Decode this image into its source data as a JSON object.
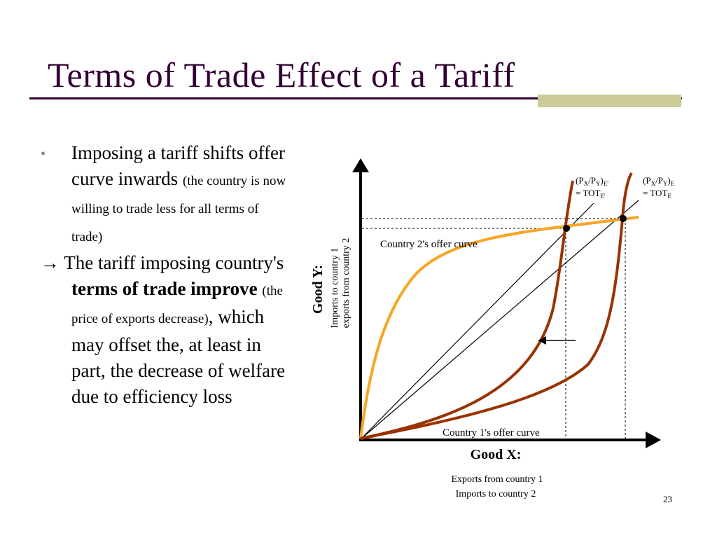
{
  "slide": {
    "title": "Terms of Trade Effect of a Tariff",
    "page_number": "23"
  },
  "bullets": {
    "item1_main": "Imposing a tariff shifts offer curve inwards",
    "item1_note": "(the country is now willing to trade less for all terms of trade)",
    "item2_marker": "→",
    "item2_text_a": "The tariff imposing country's",
    "item2_bold": "terms of trade improve",
    "item2_note": "(the price of exports decrease)",
    "item2_text_b": ", which may offset the, at least in part, the decrease of welfare due to efficiency loss"
  },
  "diagram": {
    "y_axis_title": "Good Y:",
    "y_axis_sub1": "Imports to country 1",
    "y_axis_sub2": "exports from country 2",
    "x_axis_title": "Good X:",
    "x_axis_sub1": "Exports from country 1",
    "x_axis_sub2": "Imports to country 2",
    "curve_country2_label": "Country 2's offer curve",
    "curve_country1_label": "Country 1's offer curve",
    "tot_new": {
      "ratio": "P",
      "x": "X",
      "slash": "/P",
      "y": "Y",
      "close": ")",
      "sub": "E'",
      "eq": "= TOT",
      "eq_sub": "E'"
    },
    "tot_old": {
      "ratio": "P",
      "x": "X",
      "slash": "/P",
      "y": "Y",
      "close": ")",
      "sub": "E",
      "eq": "= TOT",
      "eq_sub": "E"
    },
    "colors": {
      "country2_curve": "#f5a623",
      "country1_curve": "#993300",
      "axis": "#000000"
    }
  }
}
